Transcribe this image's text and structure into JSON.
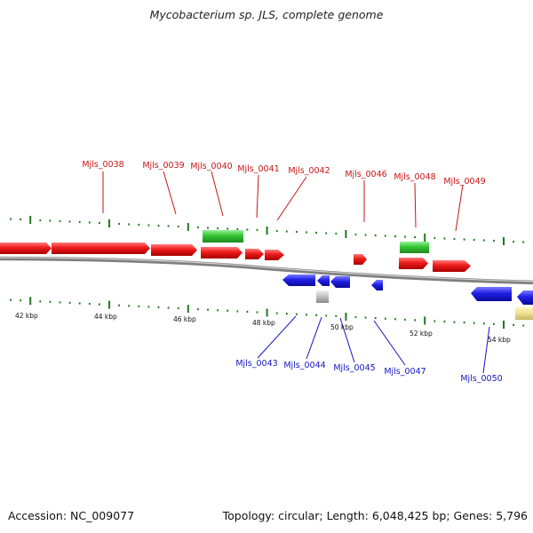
{
  "title": "Mycobacterium sp. JLS, complete genome",
  "footer": {
    "accession": "Accession: NC_009077",
    "summary": "Topology: circular; Length: 6,048,425 bp; Genes: 5,796"
  },
  "colors": {
    "forward": "#e81313",
    "reverse": "#1c1ce0",
    "rna": "#35c435",
    "pseudo": "#bdbdbd",
    "other": "#ecdf8e",
    "tick": "#1f7a1f",
    "backbone": "#8a8a8a",
    "label_forward": "#c81515",
    "label_reverse": "#1515c0"
  },
  "scale_labels": [
    "42 kbp",
    "44 kbp",
    "46 kbp",
    "48 kbp",
    "50 kbp",
    "52 kbp",
    "54 kbp"
  ],
  "top_labels": [
    "Mjls_0038",
    "Mjls_0039",
    "Mjls_0040",
    "Mjls_0041",
    "Mjls_0042",
    "Mjls_0046",
    "Mjls_0048",
    "Mjls_0049"
  ],
  "bottom_labels": [
    "Mjls_0043",
    "Mjls_0044",
    "Mjls_0045",
    "Mjls_0047",
    "Mjls_0050"
  ]
}
